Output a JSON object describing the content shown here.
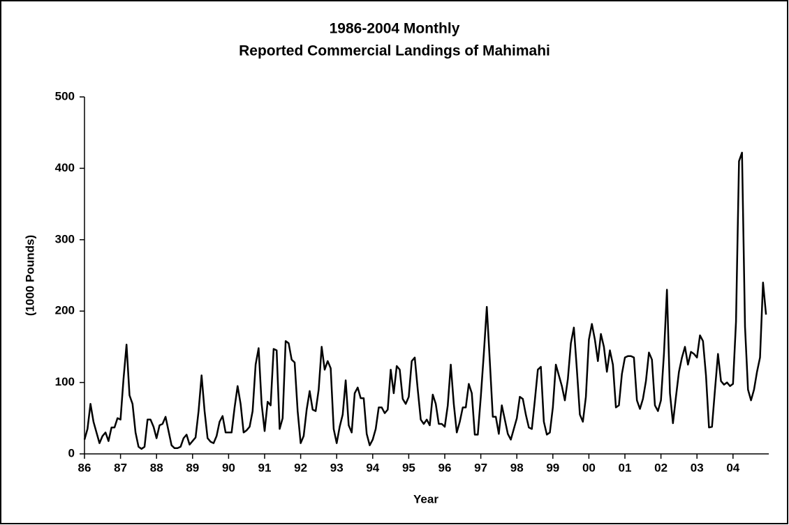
{
  "chart_data": {
    "type": "line",
    "title": [
      "1986-2004 Monthly",
      "Reported Commercial Landings of Mahimahi"
    ],
    "y_label": "(1000 Pounds)",
    "x_label": "Year",
    "categories": [
      "86",
      null,
      null,
      null,
      null,
      null,
      null,
      null,
      null,
      null,
      null,
      null,
      "87",
      null,
      null,
      null,
      null,
      null,
      null,
      null,
      null,
      null,
      null,
      null,
      "88",
      null,
      null,
      null,
      null,
      null,
      null,
      null,
      null,
      null,
      null,
      null,
      "89",
      null,
      null,
      null,
      null,
      null,
      null,
      null,
      null,
      null,
      null,
      null,
      "90",
      null,
      null,
      null,
      null,
      null,
      null,
      null,
      null,
      null,
      null,
      null,
      "91",
      null,
      null,
      null,
      null,
      null,
      null,
      null,
      null,
      null,
      null,
      null,
      "92",
      null,
      null,
      null,
      null,
      null,
      null,
      null,
      null,
      null,
      null,
      null,
      "93",
      null,
      null,
      null,
      null,
      null,
      null,
      null,
      null,
      null,
      null,
      null,
      "94",
      null,
      null,
      null,
      null,
      null,
      null,
      null,
      null,
      null,
      null,
      null,
      "95",
      null,
      null,
      null,
      null,
      null,
      null,
      null,
      null,
      null,
      null,
      null,
      "96",
      null,
      null,
      null,
      null,
      null,
      null,
      null,
      null,
      null,
      null,
      null,
      "97",
      null,
      null,
      null,
      null,
      null,
      null,
      null,
      null,
      null,
      null,
      null,
      "98",
      null,
      null,
      null,
      null,
      null,
      null,
      null,
      null,
      null,
      null,
      null,
      "99",
      null,
      null,
      null,
      null,
      null,
      null,
      null,
      null,
      null,
      null,
      null,
      "00",
      null,
      null,
      null,
      null,
      null,
      null,
      null,
      null,
      null,
      null,
      null,
      "01",
      null,
      null,
      null,
      null,
      null,
      null,
      null,
      null,
      null,
      null,
      null,
      "02",
      null,
      null,
      null,
      null,
      null,
      null,
      null,
      null,
      null,
      null,
      null,
      "03",
      null,
      null,
      null,
      null,
      null,
      null,
      null,
      null,
      null,
      null,
      null,
      "04",
      null,
      null,
      null,
      null,
      null,
      null,
      null,
      null,
      null,
      null,
      null
    ],
    "values": [
      20,
      35,
      70,
      45,
      30,
      15,
      25,
      30,
      18,
      37,
      37,
      50,
      48,
      105,
      153,
      82,
      70,
      30,
      10,
      7,
      10,
      48,
      48,
      38,
      22,
      40,
      42,
      52,
      32,
      12,
      8,
      8,
      10,
      22,
      27,
      13,
      18,
      23,
      60,
      110,
      60,
      22,
      17,
      15,
      25,
      45,
      53,
      30,
      30,
      30,
      65,
      95,
      70,
      30,
      33,
      38,
      60,
      125,
      148,
      70,
      32,
      73,
      68,
      147,
      145,
      35,
      50,
      158,
      155,
      132,
      128,
      60,
      15,
      25,
      62,
      88,
      62,
      60,
      90,
      150,
      118,
      130,
      120,
      35,
      15,
      38,
      55,
      103,
      40,
      30,
      85,
      93,
      78,
      78,
      28,
      12,
      20,
      35,
      65,
      65,
      57,
      62,
      118,
      85,
      123,
      118,
      77,
      70,
      80,
      130,
      135,
      90,
      48,
      42,
      48,
      40,
      83,
      70,
      42,
      42,
      38,
      68,
      125,
      70,
      30,
      45,
      65,
      65,
      98,
      85,
      27,
      27,
      80,
      140,
      206,
      130,
      52,
      52,
      28,
      68,
      48,
      28,
      20,
      35,
      50,
      80,
      77,
      55,
      37,
      35,
      75,
      118,
      122,
      45,
      27,
      30,
      65,
      125,
      110,
      95,
      75,
      105,
      155,
      177,
      118,
      55,
      45,
      80,
      160,
      182,
      160,
      130,
      168,
      150,
      115,
      145,
      125,
      65,
      68,
      112,
      135,
      137,
      137,
      135,
      75,
      63,
      77,
      102,
      142,
      132,
      68,
      60,
      75,
      140,
      230,
      85,
      43,
      80,
      115,
      135,
      150,
      125,
      143,
      140,
      135,
      166,
      158,
      110,
      37,
      38,
      90,
      140,
      102,
      97,
      100,
      95,
      98,
      185,
      410,
      422,
      178,
      90,
      75,
      90,
      115,
      135,
      240,
      195
    ],
    "color": "#000000",
    "ylim": [
      0,
      500
    ],
    "yticks": [
      0,
      100,
      200,
      300,
      400,
      500
    ],
    "grid": false
  }
}
